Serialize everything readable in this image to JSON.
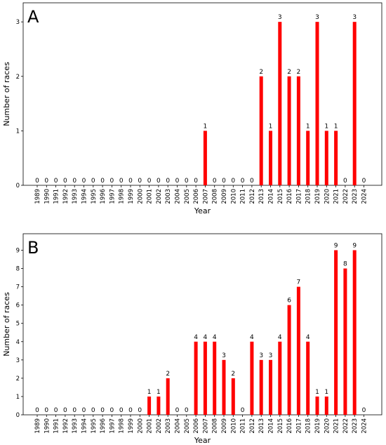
{
  "chart_data": [
    {
      "type": "bar",
      "panel_label": "A",
      "title": "",
      "xlabel": "Year",
      "ylabel": "Number of races",
      "ylim": [
        0,
        3.35
      ],
      "yticks": [
        0,
        1,
        2,
        3
      ],
      "grid": false,
      "bar_color": "#ff0000",
      "categories": [
        "1989",
        "1990",
        "1991",
        "1992",
        "1993",
        "1994",
        "1995",
        "1996",
        "1997",
        "1998",
        "1999",
        "2000",
        "2001",
        "2002",
        "2003",
        "2004",
        "2005",
        "2006",
        "2007",
        "2008",
        "2009",
        "2010",
        "2011",
        "2012",
        "2013",
        "2014",
        "2015",
        "2016",
        "2017",
        "2018",
        "2019",
        "2020",
        "2021",
        "2022",
        "2023",
        "2024"
      ],
      "values": [
        0,
        0,
        0,
        0,
        0,
        0,
        0,
        0,
        0,
        0,
        0,
        0,
        0,
        0,
        0,
        0,
        0,
        0,
        1,
        0,
        0,
        0,
        0,
        0,
        2,
        1,
        3,
        2,
        2,
        1,
        3,
        1,
        1,
        0,
        3,
        0
      ]
    },
    {
      "type": "bar",
      "panel_label": "B",
      "title": "",
      "xlabel": "Year",
      "ylabel": "Number of races",
      "ylim": [
        0,
        9.9
      ],
      "yticks": [
        0,
        1,
        2,
        3,
        4,
        5,
        6,
        7,
        8,
        9
      ],
      "grid": false,
      "bar_color": "#ff0000",
      "categories": [
        "1989",
        "1990",
        "1991",
        "1992",
        "1993",
        "1994",
        "1995",
        "1996",
        "1997",
        "1998",
        "1999",
        "2000",
        "2001",
        "2002",
        "2003",
        "2004",
        "2005",
        "2006",
        "2007",
        "2008",
        "2009",
        "2010",
        "2011",
        "2012",
        "2013",
        "2014",
        "2015",
        "2016",
        "2017",
        "2018",
        "2019",
        "2020",
        "2021",
        "2022",
        "2023",
        "2024"
      ],
      "values": [
        0,
        0,
        0,
        0,
        0,
        0,
        0,
        0,
        0,
        0,
        0,
        0,
        1,
        1,
        2,
        0,
        0,
        4,
        4,
        4,
        3,
        2,
        0,
        4,
        3,
        3,
        4,
        6,
        7,
        4,
        1,
        1,
        9,
        8,
        9,
        0
      ]
    }
  ]
}
